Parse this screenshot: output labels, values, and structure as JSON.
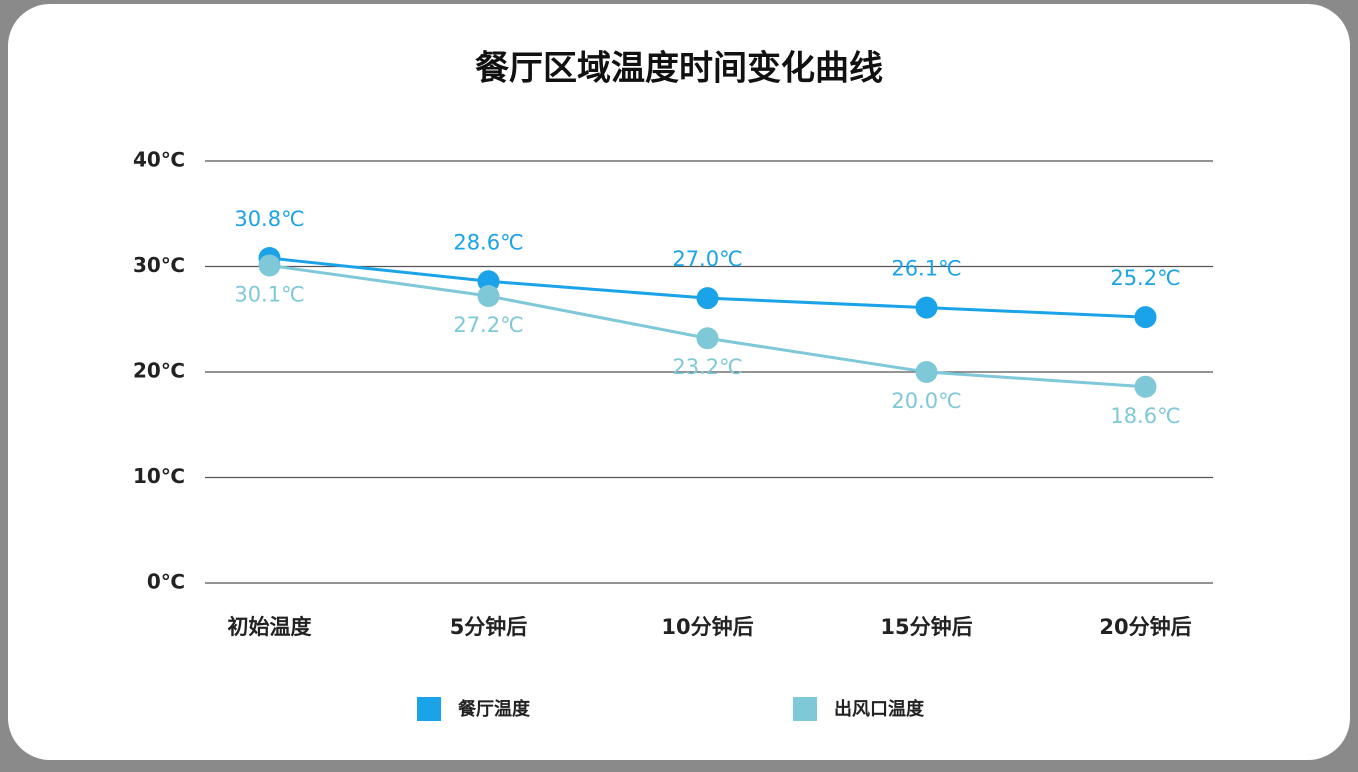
{
  "chart_data": {
    "type": "line",
    "title": "餐厅区域温度时间变化曲线",
    "categories": [
      "初始温度",
      "5分钟后",
      "10分钟后",
      "15分钟后",
      "20分钟后"
    ],
    "series": [
      {
        "name": "餐厅温度",
        "color": "#1aa3e8",
        "values": [
          30.8,
          28.6,
          27.0,
          26.1,
          25.2
        ],
        "value_labels": [
          "30.8℃",
          "28.6℃",
          "27.0℃",
          "26.1℃",
          "25.2℃"
        ]
      },
      {
        "name": "出风口温度",
        "color": "#7ec8d8",
        "values": [
          30.1,
          27.2,
          23.2,
          20.0,
          18.6
        ],
        "value_labels": [
          "30.1℃",
          "27.2℃",
          "23.2℃",
          "20.0℃",
          "18.6℃"
        ]
      }
    ],
    "ylim": [
      0,
      40
    ],
    "yticks": [
      {
        "value": 0,
        "label": "0℃"
      },
      {
        "value": 10,
        "label": "10℃"
      },
      {
        "value": 20,
        "label": "20℃"
      },
      {
        "value": 30,
        "label": "30℃"
      },
      {
        "value": 40,
        "label": "40℃"
      }
    ],
    "grid": true
  }
}
